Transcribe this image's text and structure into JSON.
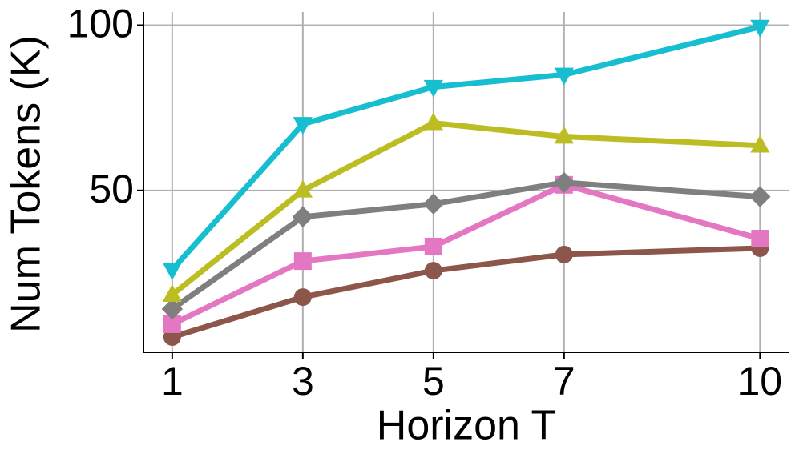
{
  "chart_data": {
    "type": "line",
    "x_label": "Horizon T",
    "y_label": "Num Tokens (K)",
    "x": [
      1,
      3,
      5,
      7,
      10
    ],
    "series": [
      {
        "color": "#8c564b",
        "marker": "o",
        "values": [
          5.6,
          17.7,
          25.7,
          30.6,
          32.5
        ]
      },
      {
        "color": "#e377c2",
        "marker": "s",
        "values": [
          9.5,
          28.6,
          33.0,
          51.7,
          35.4
        ]
      },
      {
        "color": "#7f7f7f",
        "marker": "D",
        "values": [
          14.1,
          42.0,
          45.9,
          52.4,
          48.1
        ]
      },
      {
        "color": "#bcbd22",
        "marker": "^",
        "values": [
          18.4,
          50.0,
          70.4,
          66.3,
          63.6
        ]
      },
      {
        "color": "#17becf",
        "marker": "v",
        "values": [
          26.0,
          70.1,
          81.3,
          85.0,
          99.5
        ]
      }
    ],
    "xlim": [
      0.56,
      10.45
    ],
    "ylim": [
      1,
      104
    ],
    "xticks": [
      1,
      3,
      5,
      7,
      10
    ],
    "yticks": [
      50,
      100
    ],
    "grid": true
  }
}
